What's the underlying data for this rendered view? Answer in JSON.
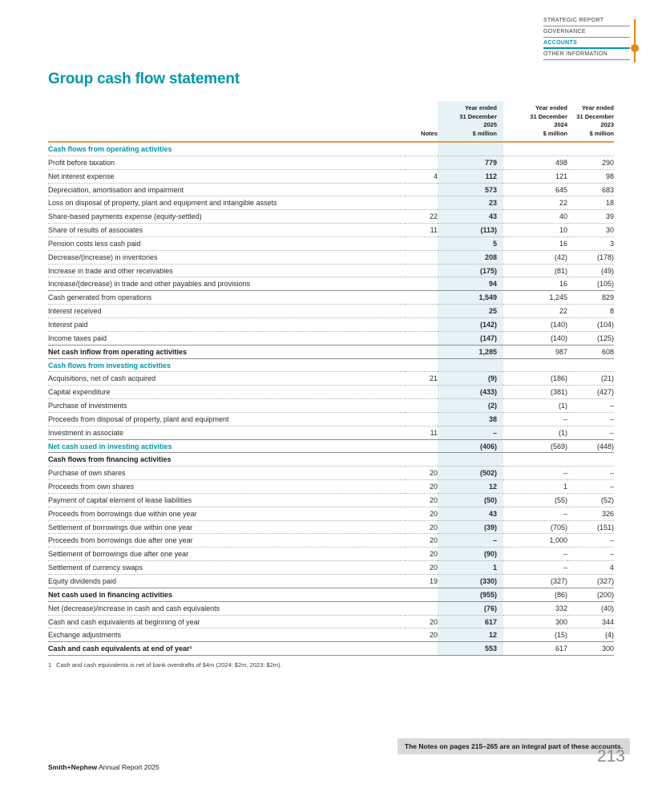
{
  "colors": {
    "brand_teal": "#0097a9",
    "accent_orange": "#f08300",
    "header_rule_gold": "#dfa047",
    "column_highlight": "#e7f2f7",
    "page_number_gray": "#8c8c8c"
  },
  "nav": {
    "items": [
      {
        "label": "STRATEGIC REPORT",
        "active": false
      },
      {
        "label": "GOVERNANCE",
        "active": false
      },
      {
        "label": "ACCOUNTS",
        "active": true
      },
      {
        "label": "OTHER INFORMATION",
        "active": false
      }
    ]
  },
  "title": "Group cash flow statement",
  "table": {
    "header": {
      "notes": "Notes",
      "y2025": "Year ended\n31 December\n2025\n$ million",
      "y2024": "Year ended\n31 December\n2024\n$ million",
      "y2023": "Year ended\n31 December\n2023\n$ million"
    },
    "rows": [
      {
        "label": "Cash flows from operating activities",
        "style": "section"
      },
      {
        "label": "Profit before taxation",
        "v2025": "779",
        "v2024": "498",
        "v2023": "290"
      },
      {
        "label": "Net interest expense",
        "notes": "4",
        "v2025": "112",
        "v2024": "121",
        "v2023": "98"
      },
      {
        "label": "Depreciation, amortisation and impairment",
        "v2025": "573",
        "v2024": "645",
        "v2023": "683"
      },
      {
        "label": "Loss on disposal of property, plant and equipment and intangible assets",
        "v2025": "23",
        "v2024": "22",
        "v2023": "18"
      },
      {
        "label": "Share-based payments expense (equity-settled)",
        "notes": "22",
        "v2025": "43",
        "v2024": "40",
        "v2023": "39"
      },
      {
        "label": "Share of results of associates",
        "notes": "11",
        "v2025": "(113)",
        "v2024": "10",
        "v2023": "30"
      },
      {
        "label": "Pension costs less cash paid",
        "v2025": "5",
        "v2024": "16",
        "v2023": "3"
      },
      {
        "label": "Decrease/(increase) in inventories",
        "v2025": "208",
        "v2024": "(42)",
        "v2023": "(178)"
      },
      {
        "label": "Increase in trade and other receivables",
        "v2025": "(175)",
        "v2024": "(81)",
        "v2023": "(49)"
      },
      {
        "label": "Increase/(decrease) in trade and other payables and provisions",
        "v2025": "94",
        "v2024": "16",
        "v2023": "(105)"
      },
      {
        "label": "Cash generated from operations",
        "v2025": "1,549",
        "v2024": "1,245",
        "v2023": "829",
        "style": "subtotal"
      },
      {
        "label": "Interest received",
        "v2025": "25",
        "v2024": "22",
        "v2023": "8"
      },
      {
        "label": "Interest paid",
        "v2025": "(142)",
        "v2024": "(140)",
        "v2023": "(104)"
      },
      {
        "label": "Income taxes paid",
        "v2025": "(147)",
        "v2024": "(140)",
        "v2023": "(125)"
      },
      {
        "label": "Net cash inflow from operating activities",
        "v2025": "1,285",
        "v2024": "987",
        "v2023": "608",
        "style": "total"
      },
      {
        "label": "Cash flows from investing activities",
        "style": "section"
      },
      {
        "label": "Acquisitions, net of cash acquired",
        "notes": "21",
        "v2025": "(9)",
        "v2024": "(186)",
        "v2023": "(21)"
      },
      {
        "label": "Capital expenditure",
        "v2025": "(433)",
        "v2024": "(381)",
        "v2023": "(427)"
      },
      {
        "label": "Purchase of investments",
        "v2025": "(2)",
        "v2024": "(1)",
        "v2023": "–"
      },
      {
        "label": "Proceeds from disposal of property, plant and equipment",
        "v2025": "38",
        "v2024": "–",
        "v2023": "–"
      },
      {
        "label": "Investment in associate",
        "notes": "11",
        "v2025": "–",
        "v2024": "(1)",
        "v2023": "–"
      },
      {
        "label": "Net cash used in investing activities",
        "v2025": "(406)",
        "v2024": "(569)",
        "v2023": "(448)",
        "style": "total-teal"
      },
      {
        "label": "Cash flows from financing activities",
        "style": "section-dark"
      },
      {
        "label": "Purchase of own shares",
        "notes": "20",
        "v2025": "(502)",
        "v2024": "–",
        "v2023": "–"
      },
      {
        "label": "Proceeds from own shares",
        "notes": "20",
        "v2025": "12",
        "v2024": "1",
        "v2023": "–"
      },
      {
        "label": "Payment of capital element of lease liabilities",
        "notes": "20",
        "v2025": "(50)",
        "v2024": "(55)",
        "v2023": "(52)"
      },
      {
        "label": "Proceeds from borrowings due within one year",
        "notes": "20",
        "v2025": "43",
        "v2024": "–",
        "v2023": "326"
      },
      {
        "label": "Settlement of borrowings due within one year",
        "notes": "20",
        "v2025": "(39)",
        "v2024": "(705)",
        "v2023": "(151)"
      },
      {
        "label": "Proceeds from borrowings due after one year",
        "notes": "20",
        "v2025": "–",
        "v2024": "1,000",
        "v2023": "–"
      },
      {
        "label": "Settlement of borrowings due after one year",
        "notes": "20",
        "v2025": "(90)",
        "v2024": "–",
        "v2023": "–"
      },
      {
        "label": "Settlement of currency swaps",
        "notes": "20",
        "v2025": "1",
        "v2024": "–",
        "v2023": "4"
      },
      {
        "label": "Equity dividends paid",
        "notes": "19",
        "v2025": "(330)",
        "v2024": "(327)",
        "v2023": "(327)"
      },
      {
        "label": "Net cash used in financing activities",
        "v2025": "(955)",
        "v2024": "(86)",
        "v2023": "(200)",
        "style": "total"
      },
      {
        "label": "Net (decrease)/increase in cash and cash equivalents",
        "v2025": "(76)",
        "v2024": "332",
        "v2023": "(40)"
      },
      {
        "label": "Cash and cash equivalents at beginning of year",
        "notes": "20",
        "v2025": "617",
        "v2024": "300",
        "v2023": "344"
      },
      {
        "label": "Exchange adjustments",
        "notes": "20",
        "v2025": "12",
        "v2024": "(15)",
        "v2023": "(4)"
      },
      {
        "label": "Cash and cash equivalents at end of year¹",
        "v2025": "553",
        "v2024": "617",
        "v2023": "300",
        "style": "total"
      }
    ]
  },
  "footnote": {
    "marker": "1",
    "text": "Cash and cash equivalents is net of bank overdrafts of $4m (2024: $2m, 2023: $2m)."
  },
  "notes_box": "The Notes on pages 215–265 are an integral part of these accounts.",
  "footer": {
    "brand": "Smith+Nephew",
    "report": " Annual Report 2025",
    "page_number": "213"
  }
}
